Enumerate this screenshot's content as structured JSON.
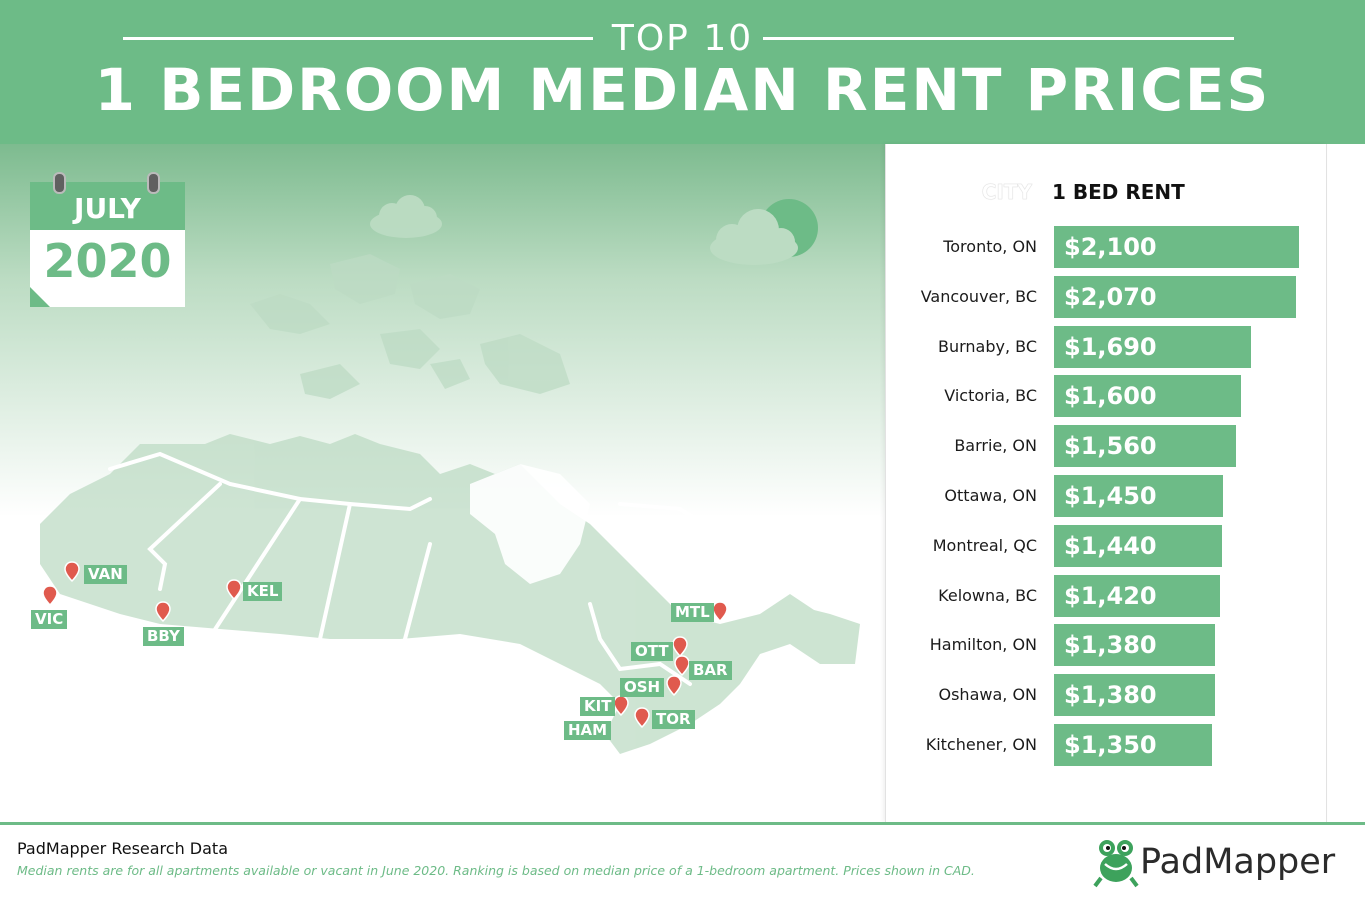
{
  "header": {
    "kicker": "TOP 10",
    "title": "1 BEDROOM MEDIAN RENT PRICES"
  },
  "calendar": {
    "month": "JULY",
    "year": "2020"
  },
  "colors": {
    "brand_green": "#6dbb87",
    "dark_text": "#1b1b1b",
    "pin_red": "#e05a4e"
  },
  "chart_data": {
    "type": "bar",
    "orientation": "horizontal",
    "column_headers": [
      "CITY",
      "1 BED RENT"
    ],
    "categories": [
      "Toronto, ON",
      "Vancouver, BC",
      "Burnaby, BC",
      "Victoria, BC",
      "Barrie, ON",
      "Ottawa, ON",
      "Montreal, QC",
      "Kelowna, BC",
      "Hamilton, ON",
      "Oshawa, ON",
      "Kitchener, ON"
    ],
    "values": [
      2100,
      2070,
      1690,
      1600,
      1560,
      1450,
      1440,
      1420,
      1380,
      1380,
      1350
    ],
    "value_labels": [
      "$2,100",
      "$2,070",
      "$1,690",
      "$1,600",
      "$1,560",
      "$1,450",
      "$1,440",
      "$1,420",
      "$1,380",
      "$1,380",
      "$1,350"
    ],
    "unit": "CAD",
    "grid": false
  },
  "map": {
    "tags": [
      "VAN",
      "VIC",
      "BBY",
      "KEL",
      "MTL",
      "OTT",
      "BAR",
      "OSH",
      "KIT",
      "TOR",
      "HAM"
    ]
  },
  "footer": {
    "title": "PadMapper Research Data",
    "note": "Median rents are for all apartments available or vacant in June 2020. Ranking is based on median price of a 1-bedroom apartment. Prices shown in CAD.",
    "logo": "PadMapper"
  }
}
